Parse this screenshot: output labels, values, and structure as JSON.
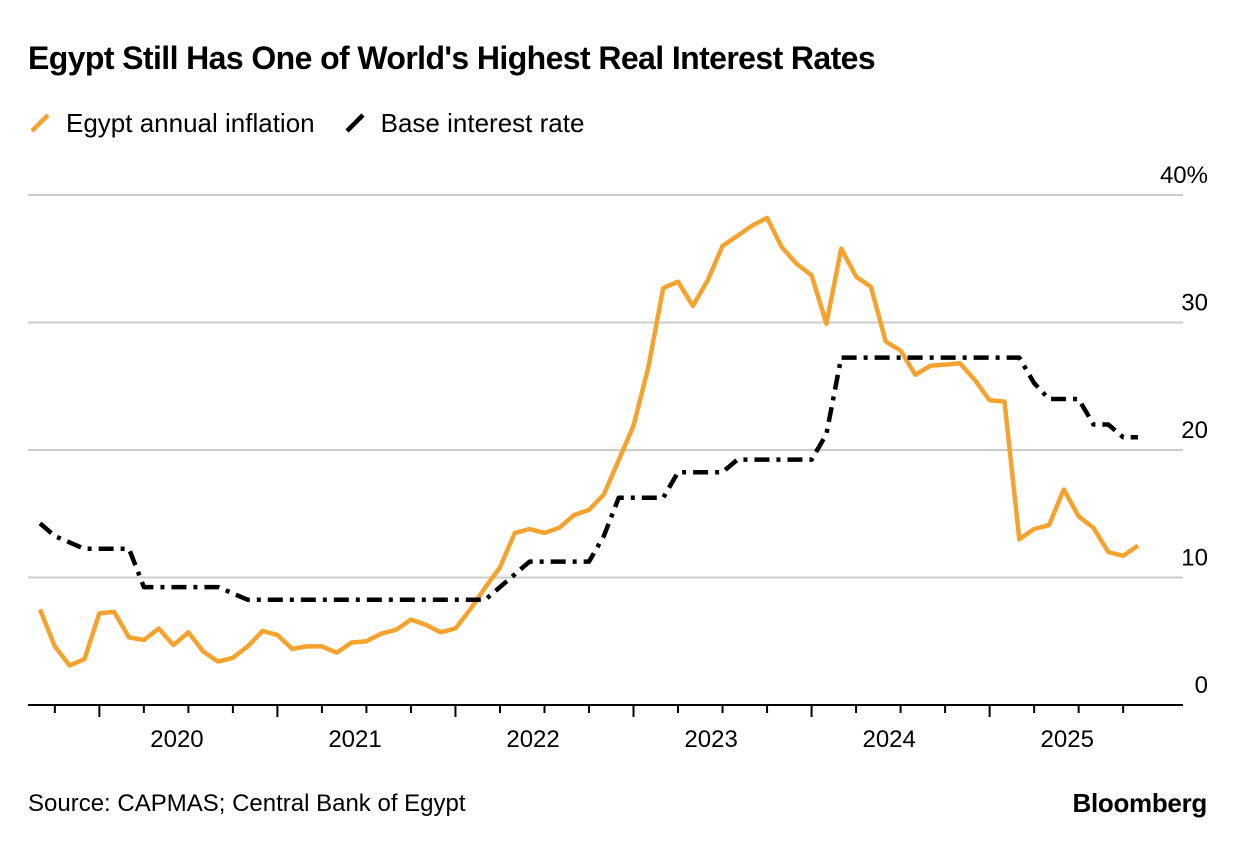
{
  "title": "Egypt Still Has One of World's Highest Real Interest Rates",
  "source": "Source: CAPMAS; Central Bank of Egypt",
  "brand": "Bloomberg",
  "colors": {
    "inflation": "#F5A32E",
    "rate": "#000000",
    "grid": "#CCCCCC",
    "axis": "#000000"
  },
  "chart_data": {
    "type": "line",
    "title": "Egypt Still Has One of World's Highest Real Interest Rates",
    "xlabel": "",
    "ylabel": "",
    "ylim": [
      0,
      40
    ],
    "xlim": [
      "2019-09",
      "2025-11"
    ],
    "y_ticks": [
      0,
      10,
      20,
      30,
      40
    ],
    "y_tick_labels": [
      "0",
      "10",
      "20",
      "30",
      "40%"
    ],
    "x_ticks": [
      "2020-01",
      "2021-01",
      "2022-01",
      "2023-01",
      "2024-01",
      "2025-01"
    ],
    "x_tick_labels": [
      "2020",
      "2021",
      "2022",
      "2023",
      "2024",
      "2025"
    ],
    "legend": [
      "Egypt annual inflation",
      "Base interest rate"
    ],
    "legend_position": "top-left",
    "series": [
      {
        "name": "Egypt annual inflation",
        "style": "solid",
        "color": "#F5A32E",
        "x": [
          "2019-09",
          "2019-10",
          "2019-11",
          "2019-12",
          "2020-01",
          "2020-02",
          "2020-03",
          "2020-04",
          "2020-05",
          "2020-06",
          "2020-07",
          "2020-08",
          "2020-09",
          "2020-10",
          "2020-11",
          "2020-12",
          "2021-01",
          "2021-02",
          "2021-03",
          "2021-04",
          "2021-05",
          "2021-06",
          "2021-07",
          "2021-08",
          "2021-09",
          "2021-10",
          "2021-11",
          "2021-12",
          "2022-01",
          "2022-02",
          "2022-03",
          "2022-04",
          "2022-05",
          "2022-06",
          "2022-07",
          "2022-08",
          "2022-09",
          "2022-10",
          "2022-11",
          "2022-12",
          "2023-01",
          "2023-02",
          "2023-03",
          "2023-04",
          "2023-05",
          "2023-06",
          "2023-07",
          "2023-08",
          "2023-09",
          "2023-10",
          "2023-11",
          "2023-12",
          "2024-01",
          "2024-02",
          "2024-03",
          "2024-04",
          "2024-05",
          "2024-06",
          "2024-07",
          "2024-08",
          "2024-09",
          "2024-10",
          "2024-11",
          "2024-12",
          "2025-01",
          "2025-02",
          "2025-03",
          "2025-04",
          "2025-05",
          "2025-06",
          "2025-07",
          "2025-08",
          "2025-09",
          "2025-10",
          "2025-11"
        ],
        "values": [
          7.5,
          4.6,
          3.1,
          3.6,
          7.2,
          7.3,
          5.3,
          5.1,
          6.0,
          4.7,
          5.7,
          4.2,
          3.4,
          3.7,
          4.6,
          5.8,
          5.5,
          4.4,
          4.6,
          4.6,
          4.1,
          4.9,
          5.0,
          5.6,
          5.9,
          6.7,
          6.3,
          5.7,
          6.0,
          7.5,
          9.2,
          10.8,
          13.5,
          13.8,
          13.5,
          13.9,
          14.9,
          15.3,
          16.5,
          19.2,
          21.9,
          26.5,
          32.7,
          33.2,
          31.3,
          33.3,
          36.0,
          36.8,
          37.6,
          38.2,
          35.9,
          34.6,
          33.7,
          29.9,
          35.8,
          33.6,
          32.8,
          28.5,
          27.8,
          25.9,
          26.6,
          26.7,
          26.8,
          25.5,
          23.9,
          23.8,
          13.0,
          13.8,
          14.1,
          16.9,
          14.8,
          13.9,
          12.0,
          11.7,
          12.5
        ]
      },
      {
        "name": "Base interest rate",
        "style": "dash-dot",
        "color": "#000000",
        "x": [
          "2019-09",
          "2019-10",
          "2019-11",
          "2019-12",
          "2020-01",
          "2020-02",
          "2020-03",
          "2020-04",
          "2020-05",
          "2020-06",
          "2020-07",
          "2020-08",
          "2020-09",
          "2020-10",
          "2020-11",
          "2020-12",
          "2021-01",
          "2021-02",
          "2021-03",
          "2021-04",
          "2021-05",
          "2021-06",
          "2021-07",
          "2021-08",
          "2021-09",
          "2021-10",
          "2021-11",
          "2021-12",
          "2022-01",
          "2022-02",
          "2022-03",
          "2022-04",
          "2022-05",
          "2022-06",
          "2022-07",
          "2022-08",
          "2022-09",
          "2022-10",
          "2022-11",
          "2022-12",
          "2023-01",
          "2023-02",
          "2023-03",
          "2023-04",
          "2023-05",
          "2023-06",
          "2023-07",
          "2023-08",
          "2023-09",
          "2023-10",
          "2023-11",
          "2023-12",
          "2024-01",
          "2024-02",
          "2024-03",
          "2024-04",
          "2024-05",
          "2024-06",
          "2024-07",
          "2024-08",
          "2024-09",
          "2024-10",
          "2024-11",
          "2024-12",
          "2025-01",
          "2025-02",
          "2025-03",
          "2025-04",
          "2025-05",
          "2025-06",
          "2025-07",
          "2025-08",
          "2025-09",
          "2025-10",
          "2025-11"
        ],
        "values": [
          14.25,
          13.25,
          12.75,
          12.25,
          12.25,
          12.25,
          12.25,
          9.25,
          9.25,
          9.25,
          9.25,
          9.25,
          9.25,
          8.75,
          8.25,
          8.25,
          8.25,
          8.25,
          8.25,
          8.25,
          8.25,
          8.25,
          8.25,
          8.25,
          8.25,
          8.25,
          8.25,
          8.25,
          8.25,
          8.25,
          8.25,
          9.25,
          10.25,
          11.25,
          11.25,
          11.25,
          11.25,
          11.25,
          13.25,
          16.25,
          16.25,
          16.25,
          16.25,
          18.25,
          18.25,
          18.25,
          18.25,
          19.25,
          19.25,
          19.25,
          19.25,
          19.25,
          19.25,
          21.25,
          27.25,
          27.25,
          27.25,
          27.25,
          27.25,
          27.25,
          27.25,
          27.25,
          27.25,
          27.25,
          27.25,
          27.25,
          27.25,
          25.25,
          24.0,
          24.0,
          24.0,
          22.0,
          22.0,
          21.0,
          21.0
        ]
      }
    ]
  }
}
